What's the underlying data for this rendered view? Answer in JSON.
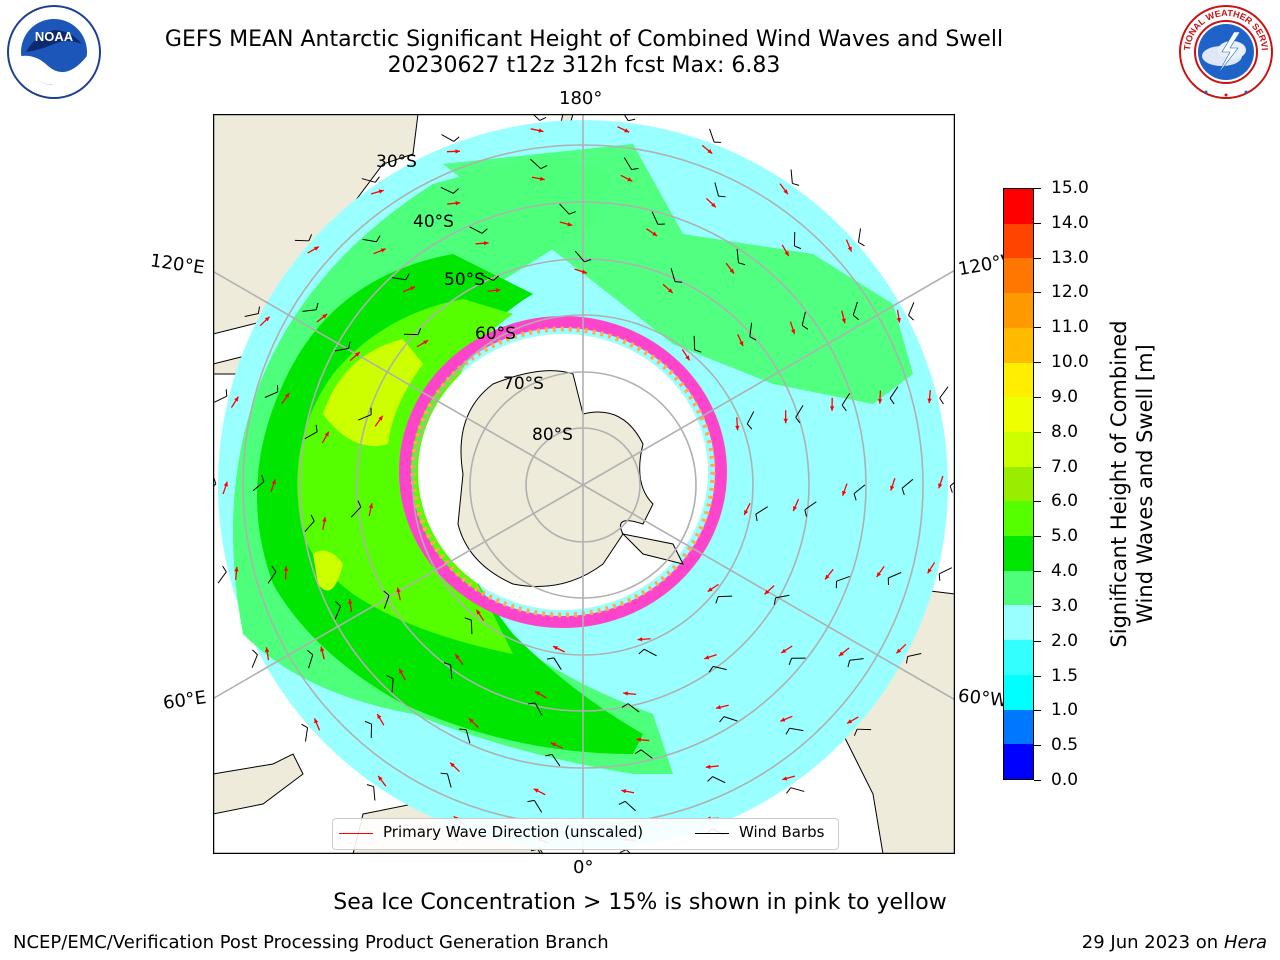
{
  "title": {
    "line1": "GEFS MEAN Antarctic Significant Height of Combined Wind Waves and Swell",
    "line2": "20230627 t12z 312h fcst   Max: 6.83"
  },
  "logos": {
    "noaa": {
      "icon": "noaa-logo",
      "text": "NOAA"
    },
    "nws": {
      "icon": "nws-logo",
      "text": "NATIONAL WEATHER SERVICE"
    }
  },
  "map": {
    "projection": "south-polar-stereographic",
    "longitude_labels": {
      "top": "180°",
      "upper_left": "120°E",
      "upper_right": "120°W",
      "lower_left": "60°E",
      "lower_right": "60°W",
      "bottom": "0°"
    },
    "latitude_labels": [
      "30°S",
      "40°S",
      "50°S",
      "60°S",
      "70°S",
      "80°S"
    ],
    "colors": {
      "land": "#efebda",
      "antarctica": "#efebda",
      "graticule": "#b0b0b0",
      "coastline": "#000000",
      "wave_arrow": "#ff0000",
      "wind_barb": "#000000"
    }
  },
  "legend": {
    "wave_direction": "Primary Wave Direction (unscaled)",
    "wind_barbs": "Wind Barbs"
  },
  "colorbar": {
    "label": "Significant Height of Combined Wind Waves and Swell [m]",
    "label_line1": "Significant Height of Combined",
    "label_line2": "Wind Waves and Swell [m]",
    "ticks": [
      "0.0",
      "0.5",
      "1.0",
      "1.5",
      "2.0",
      "3.0",
      "4.0",
      "5.0",
      "6.0",
      "7.0",
      "8.0",
      "9.0",
      "10.0",
      "11.0",
      "12.0",
      "13.0",
      "14.0",
      "15.0"
    ],
    "colors": [
      "#0000ff",
      "#0077ff",
      "#00ffff",
      "#33ffff",
      "#99ffff",
      "#4dff7a",
      "#00e600",
      "#55ff00",
      "#99ee00",
      "#ccff00",
      "#eeff00",
      "#ffee00",
      "#ffbb00",
      "#ff9900",
      "#ff7700",
      "#ff4400",
      "#ff0000"
    ]
  },
  "notes": {
    "sea_ice": "Sea Ice Concentration > 15% is shown in pink to yellow",
    "credit": "NCEP/EMC/Verification Post Processing Product Generation Branch",
    "date": "29 Jun 2023 on",
    "machine": "Hera"
  }
}
